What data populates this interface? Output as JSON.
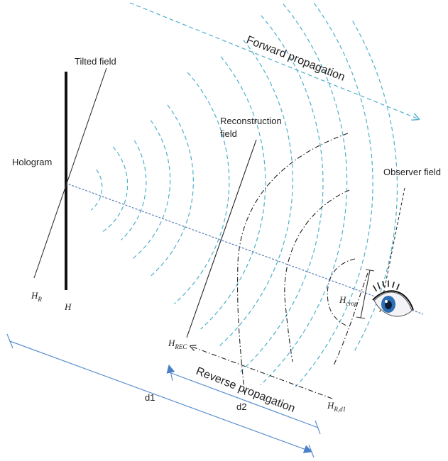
{
  "labels": {
    "forward": "Forward propagation",
    "reverse": "Reverse propagation",
    "tilted": "Tilted field",
    "hologram": "Hologram",
    "reconstruction_line1": "Reconstruction",
    "reconstruction_line2": "field",
    "observer": "Observer field",
    "d1": "d1",
    "d2": "d2"
  },
  "math": {
    "hr_main": "H",
    "hr_sub": "R",
    "h": "H",
    "hrec_main": "H",
    "hrec_sub": "REC",
    "hcrop_main": "H",
    "hcrop_sub": "crop",
    "hrd1_main": "H",
    "hrd1_sub": "R,d1"
  },
  "colors": {
    "wave": "#4fb0cc",
    "axis": "#4a72b0",
    "dim": "#5a8fcf",
    "dark": "#222222",
    "iris": "#2c6fb5"
  }
}
